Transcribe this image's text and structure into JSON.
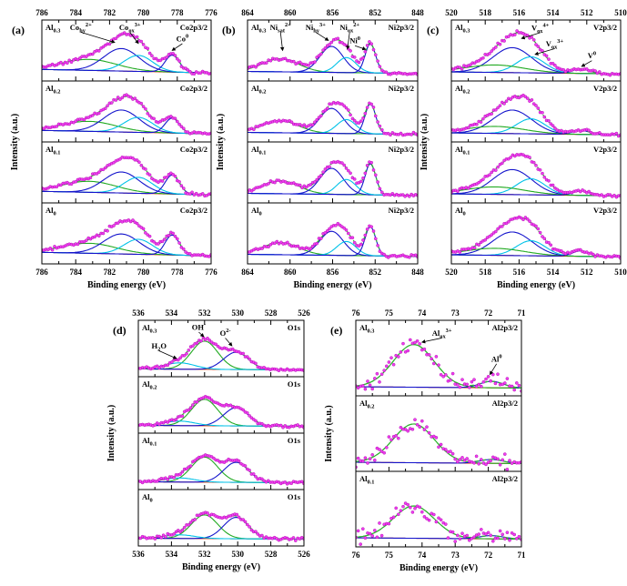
{
  "figure": {
    "background": "#ffffff",
    "xlabel": "Binding energy (eV)",
    "ylabel": "Intensity (a.u.)"
  },
  "style": {
    "point_color": "#ee3fee",
    "point_stroke": "#a800a8",
    "envelope_color": "#2eb82e",
    "axis_color": "#000000",
    "text_color": "#000000"
  },
  "chart_data": [
    {
      "id": "a",
      "tag": "(a)",
      "type": "line",
      "region": "Co2p3/2",
      "xlabel": "Binding energy (eV)",
      "ylabel": "Intensity (a.u.)",
      "x_range": [
        786,
        776
      ],
      "x_ticks": [
        786,
        784,
        782,
        780,
        778,
        776
      ],
      "x_minor": 1,
      "baseline": {
        "left": 0.14,
        "right": 0.07,
        "color": "#d42a00"
      },
      "noise": 0.02,
      "point_step": 2.3,
      "components": [
        {
          "name": "Co satellite",
          "center": 783.2,
          "sigma": 1.6,
          "color": "#22aa22"
        },
        {
          "name": "Co_hy 2+",
          "center": 781.3,
          "sigma": 1.05,
          "color": "#1414cc"
        },
        {
          "name": "Co_ox 3+",
          "center": 780.3,
          "sigma": 0.85,
          "color": "#00c2e8"
        },
        {
          "name": "Co 0",
          "center": 778.3,
          "sigma": 0.42,
          "color": "#1414cc"
        }
      ],
      "rows": [
        {
          "sample": [
            {
              "t": "Al"
            },
            {
              "t": "0.3",
              "s": "sub"
            }
          ],
          "amps": [
            0.22,
            0.45,
            0.32,
            0.34
          ],
          "annotations": [
            {
              "parts": [
                {
                  "t": "Co"
                },
                {
                  "t": "hy",
                  "s": "sub"
                },
                {
                  "t": "2+",
                  "s": "sup"
                }
              ],
              "lx": 783.7,
              "lf": 0.93,
              "tx": 781.7,
              "tf": 0.68
            },
            {
              "parts": [
                {
                  "t": "Co"
                },
                {
                  "t": "ox",
                  "s": "sub"
                },
                {
                  "t": "3+",
                  "s": "sup"
                }
              ],
              "lx": 780.8,
              "lf": 0.93,
              "tx": 780.3,
              "tf": 0.66
            },
            {
              "parts": [
                {
                  "t": "Co"
                },
                {
                  "t": "0",
                  "s": "sup"
                }
              ],
              "lx": 777.7,
              "lf": 0.7,
              "tx": 778.3,
              "tf": 0.52
            }
          ]
        },
        {
          "sample": [
            {
              "t": "Al"
            },
            {
              "t": "0.2",
              "s": "sub"
            }
          ],
          "amps": [
            0.2,
            0.44,
            0.3,
            0.3
          ],
          "annotations": []
        },
        {
          "sample": [
            {
              "t": "Al"
            },
            {
              "t": "0.1",
              "s": "sub"
            }
          ],
          "amps": [
            0.22,
            0.42,
            0.32,
            0.38
          ],
          "annotations": []
        },
        {
          "sample": [
            {
              "t": "Al"
            },
            {
              "t": "0",
              "s": "sub"
            }
          ],
          "amps": [
            0.2,
            0.4,
            0.3,
            0.4
          ],
          "annotations": []
        }
      ]
    },
    {
      "id": "b",
      "tag": "(b)",
      "type": "line",
      "region": "Ni2p3/2",
      "xlabel": "Binding energy (eV)",
      "ylabel": "Intensity (a.u.)",
      "x_range": [
        864,
        848
      ],
      "x_ticks": [
        864,
        860,
        856,
        852,
        848
      ],
      "x_minor": 2,
      "baseline": {
        "left": 0.1,
        "right": 0.06,
        "color": "#9a30d8"
      },
      "noise": 0.02,
      "point_step": 2.3,
      "components": [
        {
          "name": "Ni_sat 2+",
          "center": 860.9,
          "sigma": 1.7,
          "color": "#22aa22"
        },
        {
          "name": "Ni_hy 3+",
          "center": 856.1,
          "sigma": 1.1,
          "color": "#1414cc"
        },
        {
          "name": "Ni_ox 2+",
          "center": 854.7,
          "sigma": 0.9,
          "color": "#00c2e8"
        },
        {
          "name": "Ni 0",
          "center": 852.45,
          "sigma": 0.5,
          "color": "#1414cc"
        }
      ],
      "rows": [
        {
          "sample": [
            {
              "t": "Al"
            },
            {
              "t": "0.3",
              "s": "sub"
            }
          ],
          "amps": [
            0.26,
            0.52,
            0.3,
            0.58
          ],
          "annotations": [
            {
              "parts": [
                {
                  "t": "Ni"
                },
                {
                  "t": "sat",
                  "s": "sub"
                },
                {
                  "t": "2+",
                  "s": "sup"
                }
              ],
              "lx": 860.9,
              "lf": 0.93,
              "tx": 860.7,
              "tf": 0.52
            },
            {
              "parts": [
                {
                  "t": "Ni"
                },
                {
                  "t": "hy",
                  "s": "sub"
                },
                {
                  "t": "3+",
                  "s": "sup"
                }
              ],
              "lx": 857.6,
              "lf": 0.93,
              "tx": 856.4,
              "tf": 0.72
            },
            {
              "parts": [
                {
                  "t": "Ni"
                },
                {
                  "t": "ox",
                  "s": "sub"
                },
                {
                  "t": "2+",
                  "s": "sup"
                }
              ],
              "lx": 854.4,
              "lf": 0.93,
              "tx": 854.6,
              "tf": 0.55
            },
            {
              "parts": [
                {
                  "t": "Ni"
                },
                {
                  "t": "0",
                  "s": "sup"
                }
              ],
              "lx": 853.9,
              "lf": 0.66,
              "tx": 852.9,
              "tf": 0.54
            }
          ]
        },
        {
          "sample": [
            {
              "t": "Al"
            },
            {
              "t": "0.2",
              "s": "sub"
            }
          ],
          "amps": [
            0.24,
            0.5,
            0.28,
            0.6
          ],
          "annotations": []
        },
        {
          "sample": [
            {
              "t": "Al"
            },
            {
              "t": "0.1",
              "s": "sub"
            }
          ],
          "amps": [
            0.26,
            0.52,
            0.3,
            0.62
          ],
          "annotations": []
        },
        {
          "sample": [
            {
              "t": "Al"
            },
            {
              "t": "0",
              "s": "sub"
            }
          ],
          "amps": [
            0.24,
            0.48,
            0.28,
            0.58
          ],
          "annotations": []
        }
      ]
    },
    {
      "id": "c",
      "tag": "(c)",
      "type": "line",
      "region": "V2p3/2",
      "xlabel": "Binding energy (eV)",
      "ylabel": "Intensity (a.u.)",
      "x_range": [
        520,
        510
      ],
      "x_ticks": [
        520,
        518,
        516,
        514,
        512,
        510
      ],
      "x_minor": 1,
      "baseline": {
        "left": 0.09,
        "right": 0.05,
        "color": "#d42a00"
      },
      "noise": 0.02,
      "point_step": 2.3,
      "components": [
        {
          "name": "V_ox 4+",
          "center": 516.4,
          "sigma": 1.15,
          "color": "#1414cc"
        },
        {
          "name": "V_ox 3+",
          "center": 515.3,
          "sigma": 0.85,
          "color": "#00c2e8"
        },
        {
          "name": "V satellite",
          "center": 517.4,
          "sigma": 1.7,
          "color": "#22aa22"
        },
        {
          "name": "V 0",
          "center": 512.35,
          "sigma": 0.5,
          "color": "#1414cc"
        }
      ],
      "rows": [
        {
          "sample": [
            {
              "t": "Al"
            },
            {
              "t": "0.3",
              "s": "sub"
            }
          ],
          "amps": [
            0.5,
            0.32,
            0.15,
            0.09
          ],
          "annotations": [
            {
              "parts": [
                {
                  "t": "V"
                },
                {
                  "t": "ox",
                  "s": "sub"
                },
                {
                  "t": "4+",
                  "s": "sup"
                }
              ],
              "lx": 514.75,
              "lf": 0.92,
              "tx": 515.85,
              "tf": 0.76
            },
            {
              "parts": [
                {
                  "t": "V"
                },
                {
                  "t": "ox",
                  "s": "sub"
                },
                {
                  "t": "3+",
                  "s": "sup"
                }
              ],
              "lx": 513.9,
              "lf": 0.6,
              "tx": 515.05,
              "tf": 0.44
            },
            {
              "parts": [
                {
                  "t": "V"
                },
                {
                  "t": "0",
                  "s": "sup"
                }
              ],
              "lx": 511.7,
              "lf": 0.36,
              "tx": 512.3,
              "tf": 0.2
            }
          ]
        },
        {
          "sample": [
            {
              "t": "Al"
            },
            {
              "t": "0.2",
              "s": "sub"
            }
          ],
          "amps": [
            0.47,
            0.3,
            0.14,
            0.08
          ],
          "annotations": []
        },
        {
          "sample": [
            {
              "t": "Al"
            },
            {
              "t": "0.1",
              "s": "sub"
            }
          ],
          "amps": [
            0.5,
            0.32,
            0.15,
            0.09
          ],
          "annotations": []
        },
        {
          "sample": [
            {
              "t": "Al"
            },
            {
              "t": "0",
              "s": "sub"
            }
          ],
          "amps": [
            0.47,
            0.3,
            0.14,
            0.11
          ],
          "annotations": []
        }
      ]
    },
    {
      "id": "d",
      "tag": "(d)",
      "type": "line",
      "region": "O1s",
      "xlabel": "Binding energy (eV)",
      "ylabel": "Intensity (a.u.)",
      "x_range": [
        536,
        526
      ],
      "x_ticks": [
        536,
        534,
        532,
        530,
        528,
        526
      ],
      "x_minor": 1,
      "baseline": {
        "left": 0.07,
        "right": 0.05,
        "color": "#d42a00"
      },
      "noise": 0.02,
      "point_step": 2.3,
      "components": [
        {
          "name": "OH-",
          "center": 532.0,
          "sigma": 0.8,
          "color": "#22aa22"
        },
        {
          "name": "O2-",
          "center": 530.1,
          "sigma": 0.75,
          "color": "#1414cc"
        },
        {
          "name": "H2O",
          "center": 533.5,
          "sigma": 0.9,
          "color": "#00c2e8"
        }
      ],
      "rows": [
        {
          "sample": [
            {
              "t": "Al"
            },
            {
              "t": "0.3",
              "s": "sub"
            }
          ],
          "amps": [
            0.62,
            0.38,
            0.14
          ],
          "annotations": [
            {
              "parts": [
                {
                  "t": "H"
                },
                {
                  "t": "2",
                  "s": "sub"
                },
                {
                  "t": "O"
                }
              ],
              "lx": 534.75,
              "lf": 0.52,
              "tx": 533.7,
              "tf": 0.3
            },
            {
              "parts": [
                {
                  "t": "OH"
                },
                {
                  "t": "-",
                  "s": "sup"
                }
              ],
              "lx": 532.35,
              "lf": 0.93,
              "tx": 532.05,
              "tf": 0.78
            },
            {
              "parts": [
                {
                  "t": "O"
                },
                {
                  "t": "2-",
                  "s": "sup"
                }
              ],
              "lx": 530.75,
              "lf": 0.8,
              "tx": 530.35,
              "tf": 0.58
            }
          ]
        },
        {
          "sample": [
            {
              "t": "Al"
            },
            {
              "t": "0.2",
              "s": "sub"
            }
          ],
          "amps": [
            0.58,
            0.4,
            0.1
          ],
          "annotations": []
        },
        {
          "sample": [
            {
              "t": "Al"
            },
            {
              "t": "0.1",
              "s": "sub"
            }
          ],
          "amps": [
            0.55,
            0.44,
            0.09
          ],
          "annotations": []
        },
        {
          "sample": [
            {
              "t": "Al"
            },
            {
              "t": "0",
              "s": "sub"
            }
          ],
          "amps": [
            0.52,
            0.47,
            0.08
          ],
          "annotations": []
        }
      ]
    },
    {
      "id": "e",
      "tag": "(e)",
      "type": "line",
      "region": "Al2p3/2",
      "xlabel": "Binding energy (eV)",
      "ylabel": "Intensity (a.u.)",
      "x_range": [
        76,
        71
      ],
      "x_ticks": [
        76,
        75,
        74,
        73,
        72,
        71
      ],
      "x_minor": 0.5,
      "baseline": {
        "left": 0.07,
        "right": 0.05,
        "color": "#d42a00"
      },
      "noise": 0.07,
      "point_step": 2.6,
      "components": [
        {
          "name": "Al_ox 3+",
          "center": 74.25,
          "sigma": 0.62,
          "color": "#22aa22"
        },
        {
          "name": "Al 0",
          "center": 71.9,
          "sigma": 0.35,
          "color": "#1414cc"
        }
      ],
      "rows": [
        {
          "sample": [
            {
              "t": "Al"
            },
            {
              "t": "0.3",
              "s": "sub"
            }
          ],
          "amps": [
            0.66,
            0.1
          ],
          "annotations": [
            {
              "parts": [
                {
                  "t": "Al"
                },
                {
                  "t": "ox",
                  "s": "sub"
                },
                {
                  "t": "3+",
                  "s": "sup"
                }
              ],
              "lx": 73.4,
              "lf": 0.86,
              "tx": 74.0,
              "tf": 0.76
            },
            {
              "parts": [
                {
                  "t": "Al"
                },
                {
                  "t": "0",
                  "s": "sup"
                }
              ],
              "lx": 71.75,
              "lf": 0.46,
              "tx": 71.95,
              "tf": 0.26
            }
          ]
        },
        {
          "sample": [
            {
              "t": "Al"
            },
            {
              "t": "0.2",
              "s": "sub"
            }
          ],
          "amps": [
            0.6,
            0.06
          ],
          "annotations": []
        },
        {
          "sample": [
            {
              "t": "Al"
            },
            {
              "t": "0.1",
              "s": "sub"
            }
          ],
          "amps": [
            0.5,
            0.05
          ],
          "annotations": []
        }
      ]
    }
  ]
}
